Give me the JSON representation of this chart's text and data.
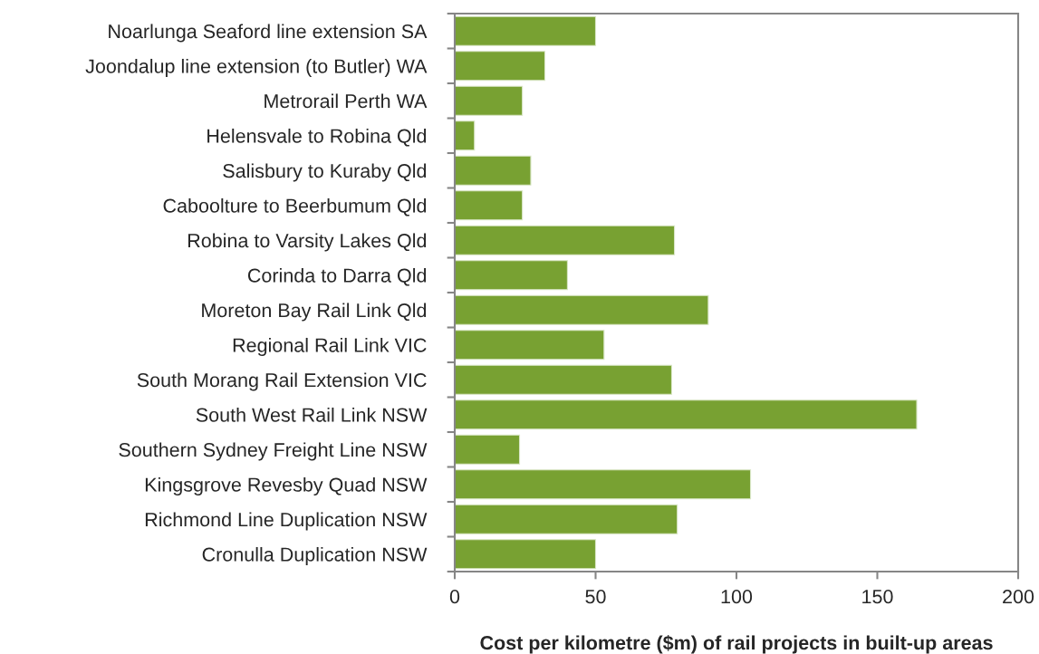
{
  "chart_data": {
    "type": "bar",
    "orientation": "horizontal",
    "xlabel": "Cost per kilometre ($m) of rail projects in built-up areas",
    "categories": [
      "Noarlunga Seaford line extension SA",
      "Joondalup line extension (to Butler) WA",
      "Metrorail Perth WA",
      "Helensvale to Robina Qld",
      "Salisbury to Kuraby Qld",
      "Caboolture to Beerbumum Qld",
      "Robina to Varsity Lakes Qld",
      "Corinda to Darra Qld",
      "Moreton Bay Rail Link Qld",
      "Regional Rail Link VIC",
      "South Morang Rail Extension VIC",
      "South West Rail Link NSW",
      "Southern Sydney Freight Line NSW",
      "Kingsgrove Revesby Quad NSW",
      "Richmond Line Duplication NSW",
      "Cronulla Duplication NSW"
    ],
    "values": [
      50,
      32,
      24,
      7,
      27,
      24,
      78,
      40,
      90,
      53,
      77,
      164,
      23,
      105,
      79,
      50
    ],
    "color": "#78a132",
    "xlim": [
      0,
      200
    ],
    "xticks": [
      0,
      50,
      100,
      150,
      200
    ],
    "grid": false,
    "legend": false
  }
}
